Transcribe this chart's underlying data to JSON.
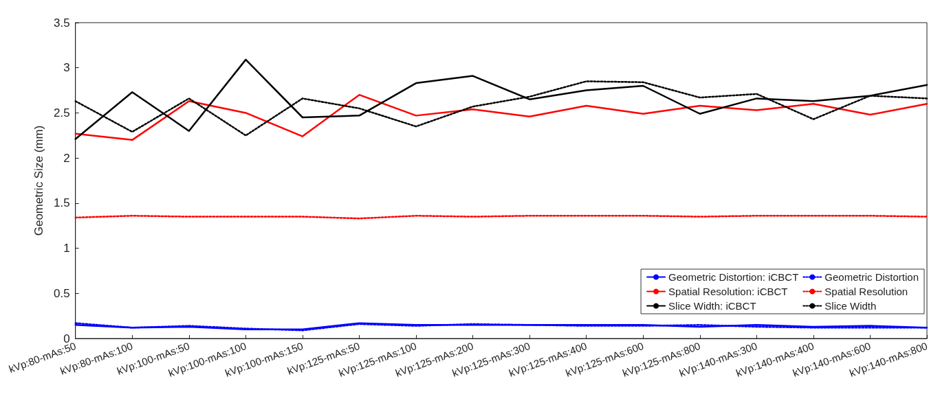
{
  "chart_data": {
    "type": "line",
    "ylabel": "Geometric Size (mm)",
    "categories": [
      "kVp:80-mAs:50",
      "kVp:80-mAs:100",
      "kVp:100-mAs:50",
      "kVp:100-mAs:100",
      "kVp:100-mAs:150",
      "kVp:125-mAs:50",
      "kVp:125-mAs:100",
      "kVp:125-mAs:200",
      "kVp:125-mAs:300",
      "kVp:125-mAs:400",
      "kVp:125-mAs:600",
      "kVp:125-mAs:800",
      "kVp:140-mAs:300",
      "kVp:140-mAs:400",
      "kVp:140-mAs:600",
      "kVp:140-mAs:800"
    ],
    "ylim": [
      0,
      3.5
    ],
    "yticks": [
      0,
      0.5,
      1,
      1.5,
      2,
      2.5,
      3,
      3.5
    ],
    "grid": false,
    "legend": "bottom right",
    "marker": "none",
    "series": [
      {
        "name": "Geometric Distortion: iCBCT",
        "color": "#0000ff",
        "line_style": "solid",
        "values": [
          0.15,
          0.12,
          0.13,
          0.1,
          0.1,
          0.17,
          0.15,
          0.15,
          0.15,
          0.15,
          0.15,
          0.13,
          0.15,
          0.13,
          0.14,
          0.12
        ]
      },
      {
        "name": "Geometric Distortion",
        "color": "#0000ff",
        "line_style": "dotted",
        "values": [
          0.17,
          0.12,
          0.14,
          0.11,
          0.09,
          0.16,
          0.14,
          0.16,
          0.15,
          0.14,
          0.14,
          0.15,
          0.13,
          0.12,
          0.12,
          0.12
        ]
      },
      {
        "name": "Spatial Resolution: iCBCT",
        "color": "#ff0000",
        "line_style": "solid",
        "values": [
          2.27,
          2.2,
          2.63,
          2.5,
          2.24,
          2.7,
          2.47,
          2.54,
          2.46,
          2.58,
          2.49,
          2.58,
          2.53,
          2.6,
          2.48,
          2.6
        ]
      },
      {
        "name": "Spatial Resolution",
        "color": "#ff0000",
        "line_style": "dotted",
        "values": [
          1.34,
          1.36,
          1.35,
          1.35,
          1.35,
          1.33,
          1.36,
          1.35,
          1.36,
          1.36,
          1.36,
          1.35,
          1.36,
          1.36,
          1.36,
          1.35
        ]
      },
      {
        "name": "Slice Width: iCBCT",
        "color": "#000000",
        "line_style": "solid",
        "values": [
          2.21,
          2.73,
          2.3,
          3.09,
          2.45,
          2.47,
          2.83,
          2.91,
          2.65,
          2.75,
          2.8,
          2.49,
          2.66,
          2.63,
          2.69,
          2.81
        ]
      },
      {
        "name": "Slice Width",
        "color": "#000000",
        "line_style": "dotted",
        "values": [
          2.63,
          2.29,
          2.66,
          2.25,
          2.66,
          2.55,
          2.35,
          2.57,
          2.68,
          2.85,
          2.84,
          2.67,
          2.71,
          2.43,
          2.69,
          2.66
        ]
      }
    ]
  }
}
